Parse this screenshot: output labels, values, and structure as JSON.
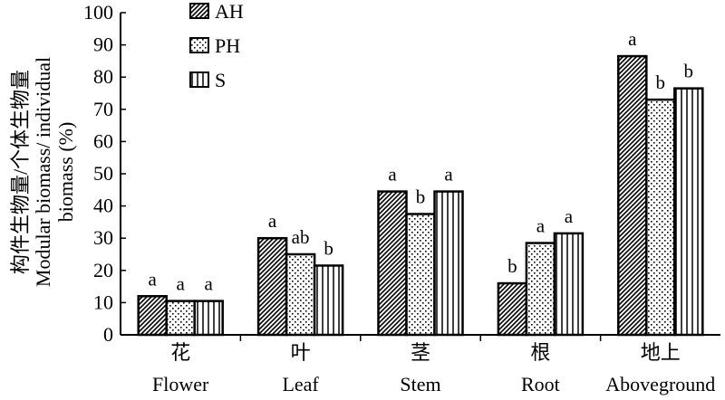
{
  "chart_data": {
    "type": "bar",
    "ylabel_lines": [
      "构件生物量/个体生物量",
      "Modular biomass/ individual",
      "biomass (%)"
    ],
    "ylim": [
      0,
      100
    ],
    "yticks": [
      "0",
      "10",
      "20",
      "30",
      "40",
      "50",
      "60",
      "70",
      "80",
      "90",
      "100"
    ],
    "categories": [
      {
        "zh": "花",
        "en": "Flower"
      },
      {
        "zh": "叶",
        "en": "Leaf"
      },
      {
        "zh": "茎",
        "en": "Stem"
      },
      {
        "zh": "根",
        "en": "Root"
      },
      {
        "zh": "地上",
        "en": "Aboveground"
      }
    ],
    "series": [
      {
        "name": "AH",
        "pattern": "diagonal",
        "values": [
          12,
          30,
          44.5,
          16,
          86.5
        ],
        "sig": [
          "a",
          "a",
          "a",
          "b",
          "a"
        ]
      },
      {
        "name": "PH",
        "pattern": "dots",
        "values": [
          10.5,
          25,
          37.5,
          28.5,
          73
        ],
        "sig": [
          "a",
          "ab",
          "b",
          "a",
          "b"
        ]
      },
      {
        "name": "S",
        "pattern": "vertical",
        "values": [
          10.5,
          21.5,
          44.5,
          31.5,
          76.5
        ],
        "sig": [
          "a",
          "b",
          "a",
          "a",
          "b"
        ]
      }
    ],
    "legend_position": "top-center",
    "grid": false
  }
}
